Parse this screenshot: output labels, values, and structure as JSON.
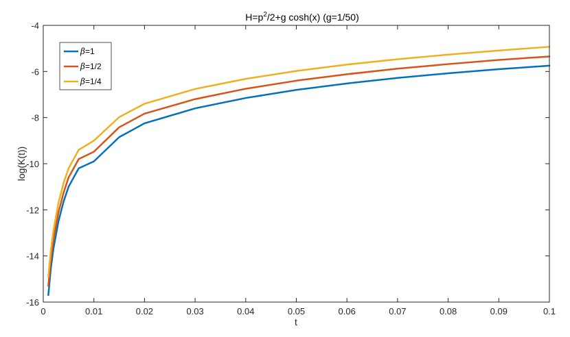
{
  "chart_data": {
    "type": "line",
    "title": {
      "prefix": "H=p",
      "superscript": "2",
      "suffix": "/2+g cosh(x)   (g=1/50)"
    },
    "xlabel": "t",
    "ylabel": "log(K(t))",
    "xlim": [
      0,
      0.1
    ],
    "ylim": [
      -16,
      -4
    ],
    "xticks": [
      0,
      0.01,
      0.02,
      0.03,
      0.04,
      0.05,
      0.06,
      0.07,
      0.08,
      0.09,
      0.1
    ],
    "xtick_labels": [
      "0",
      "0.01",
      "0.02",
      "0.03",
      "0.04",
      "0.05",
      "0.06",
      "0.07",
      "0.08",
      "0.09",
      "0.1"
    ],
    "yticks": [
      -16,
      -14,
      -12,
      -10,
      -8,
      -6,
      -4
    ],
    "ytick_labels": [
      "-16",
      "-14",
      "-12",
      "-10",
      "-8",
      "-6",
      "-4"
    ],
    "grid": false,
    "legend_position": "top-left",
    "x": [
      0.001,
      0.0015,
      0.002,
      0.003,
      0.004,
      0.005,
      0.007,
      0.01,
      0.015,
      0.02,
      0.03,
      0.04,
      0.05,
      0.06,
      0.07,
      0.08,
      0.09,
      0.1
    ],
    "series": [
      {
        "name": "=1",
        "color": "#0072BD",
        "values": [
          -15.7,
          -14.54,
          -13.7,
          -12.5,
          -11.65,
          -11.0,
          -10.2,
          -9.9,
          -8.85,
          -8.25,
          -7.6,
          -7.15,
          -6.8,
          -6.52,
          -6.28,
          -6.08,
          -5.9,
          -5.75
        ]
      },
      {
        "name": "=1/2",
        "color": "#D95319",
        "values": [
          -15.3,
          -14.14,
          -13.3,
          -12.12,
          -11.27,
          -10.6,
          -9.8,
          -9.48,
          -8.42,
          -7.83,
          -7.2,
          -6.75,
          -6.4,
          -6.12,
          -5.88,
          -5.68,
          -5.5,
          -5.35
        ]
      },
      {
        "name": "=1/4",
        "color": "#EDB120",
        "values": [
          -14.9,
          -13.74,
          -12.9,
          -11.7,
          -10.85,
          -10.2,
          -9.4,
          -9.0,
          -7.98,
          -7.4,
          -6.76,
          -6.32,
          -5.98,
          -5.7,
          -5.47,
          -5.27,
          -5.09,
          -4.93
        ]
      }
    ]
  }
}
